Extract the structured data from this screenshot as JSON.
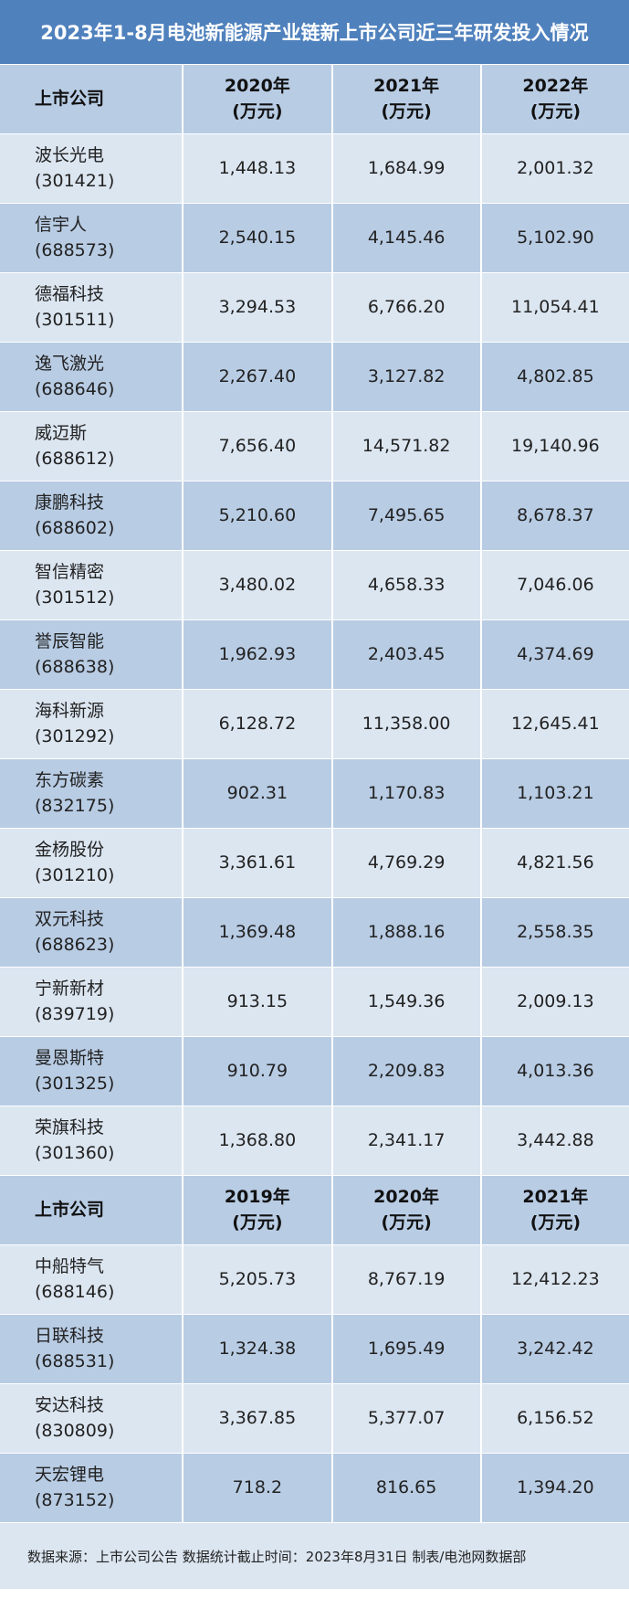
{
  "title": "2023年1-8月电池新能源产业链新上市公司近三年研发投入情况",
  "sections": [
    {
      "header": [
        [
          "上市公司"
        ],
        [
          "2020年",
          "(万元)"
        ],
        [
          "2021年",
          "(万元)"
        ],
        [
          "2022年",
          "(万元)"
        ]
      ],
      "rows": [
        [
          [
            "波长光电",
            "(301421)"
          ],
          "1,448.13",
          "1,684.99",
          "2,001.32"
        ],
        [
          [
            "信宇人",
            "(688573)"
          ],
          "2,540.15",
          "4,145.46",
          "5,102.90"
        ],
        [
          [
            "德福科技",
            "(301511)"
          ],
          "3,294.53",
          "6,766.20",
          "11,054.41"
        ],
        [
          [
            "逸飞激光",
            "(688646)"
          ],
          "2,267.40",
          "3,127.82",
          "4,802.85"
        ],
        [
          [
            "威迈斯",
            "(688612)"
          ],
          "7,656.40",
          "14,571.82",
          "19,140.96"
        ],
        [
          [
            "康鹏科技",
            "(688602)"
          ],
          "5,210.60",
          "7,495.65",
          "8,678.37"
        ],
        [
          [
            "智信精密",
            "(301512)"
          ],
          "3,480.02",
          "4,658.33",
          "7,046.06"
        ],
        [
          [
            "誉辰智能",
            "(688638)"
          ],
          "1,962.93",
          "2,403.45",
          "4,374.69"
        ],
        [
          [
            "海科新源",
            "(301292)"
          ],
          "6,128.72",
          "11,358.00",
          "12,645.41"
        ],
        [
          [
            "东方碳素",
            "(832175)"
          ],
          "902.31",
          "1,170.83",
          "1,103.21"
        ],
        [
          [
            "金杨股份",
            "(301210)"
          ],
          "3,361.61",
          "4,769.29",
          "4,821.56"
        ],
        [
          [
            "双元科技",
            "(688623)"
          ],
          "1,369.48",
          "1,888.16",
          "2,558.35"
        ],
        [
          [
            "宁新新材",
            "(839719)"
          ],
          "913.15",
          "1,549.36",
          "2,009.13"
        ],
        [
          [
            "曼恩斯特",
            "(301325)"
          ],
          "910.79",
          "2,209.83",
          "4,013.36"
        ],
        [
          [
            "荣旗科技",
            "(301360)"
          ],
          "1,368.80",
          "2,341.17",
          "3,442.88"
        ]
      ]
    },
    {
      "header": [
        [
          "上市公司"
        ],
        [
          "2019年",
          "(万元)"
        ],
        [
          "2020年",
          "(万元)"
        ],
        [
          "2021年",
          "(万元)"
        ]
      ],
      "rows": [
        [
          [
            "中船特气",
            "(688146)"
          ],
          "5,205.73",
          "8,767.19",
          "12,412.23"
        ],
        [
          [
            "日联科技",
            "(688531)"
          ],
          "1,324.38",
          "1,695.49",
          "3,242.42"
        ],
        [
          [
            "安达科技",
            "(830809)"
          ],
          "3,367.85",
          "5,377.07",
          "6,156.52"
        ],
        [
          [
            "天宏锂电",
            "(873152)"
          ],
          "718.2",
          "816.65",
          "1,394.20"
        ]
      ]
    }
  ],
  "footer": "数据来源：上市公司公告 数据统计截止时间：2023年8月31日 制表/电池网数据部"
}
